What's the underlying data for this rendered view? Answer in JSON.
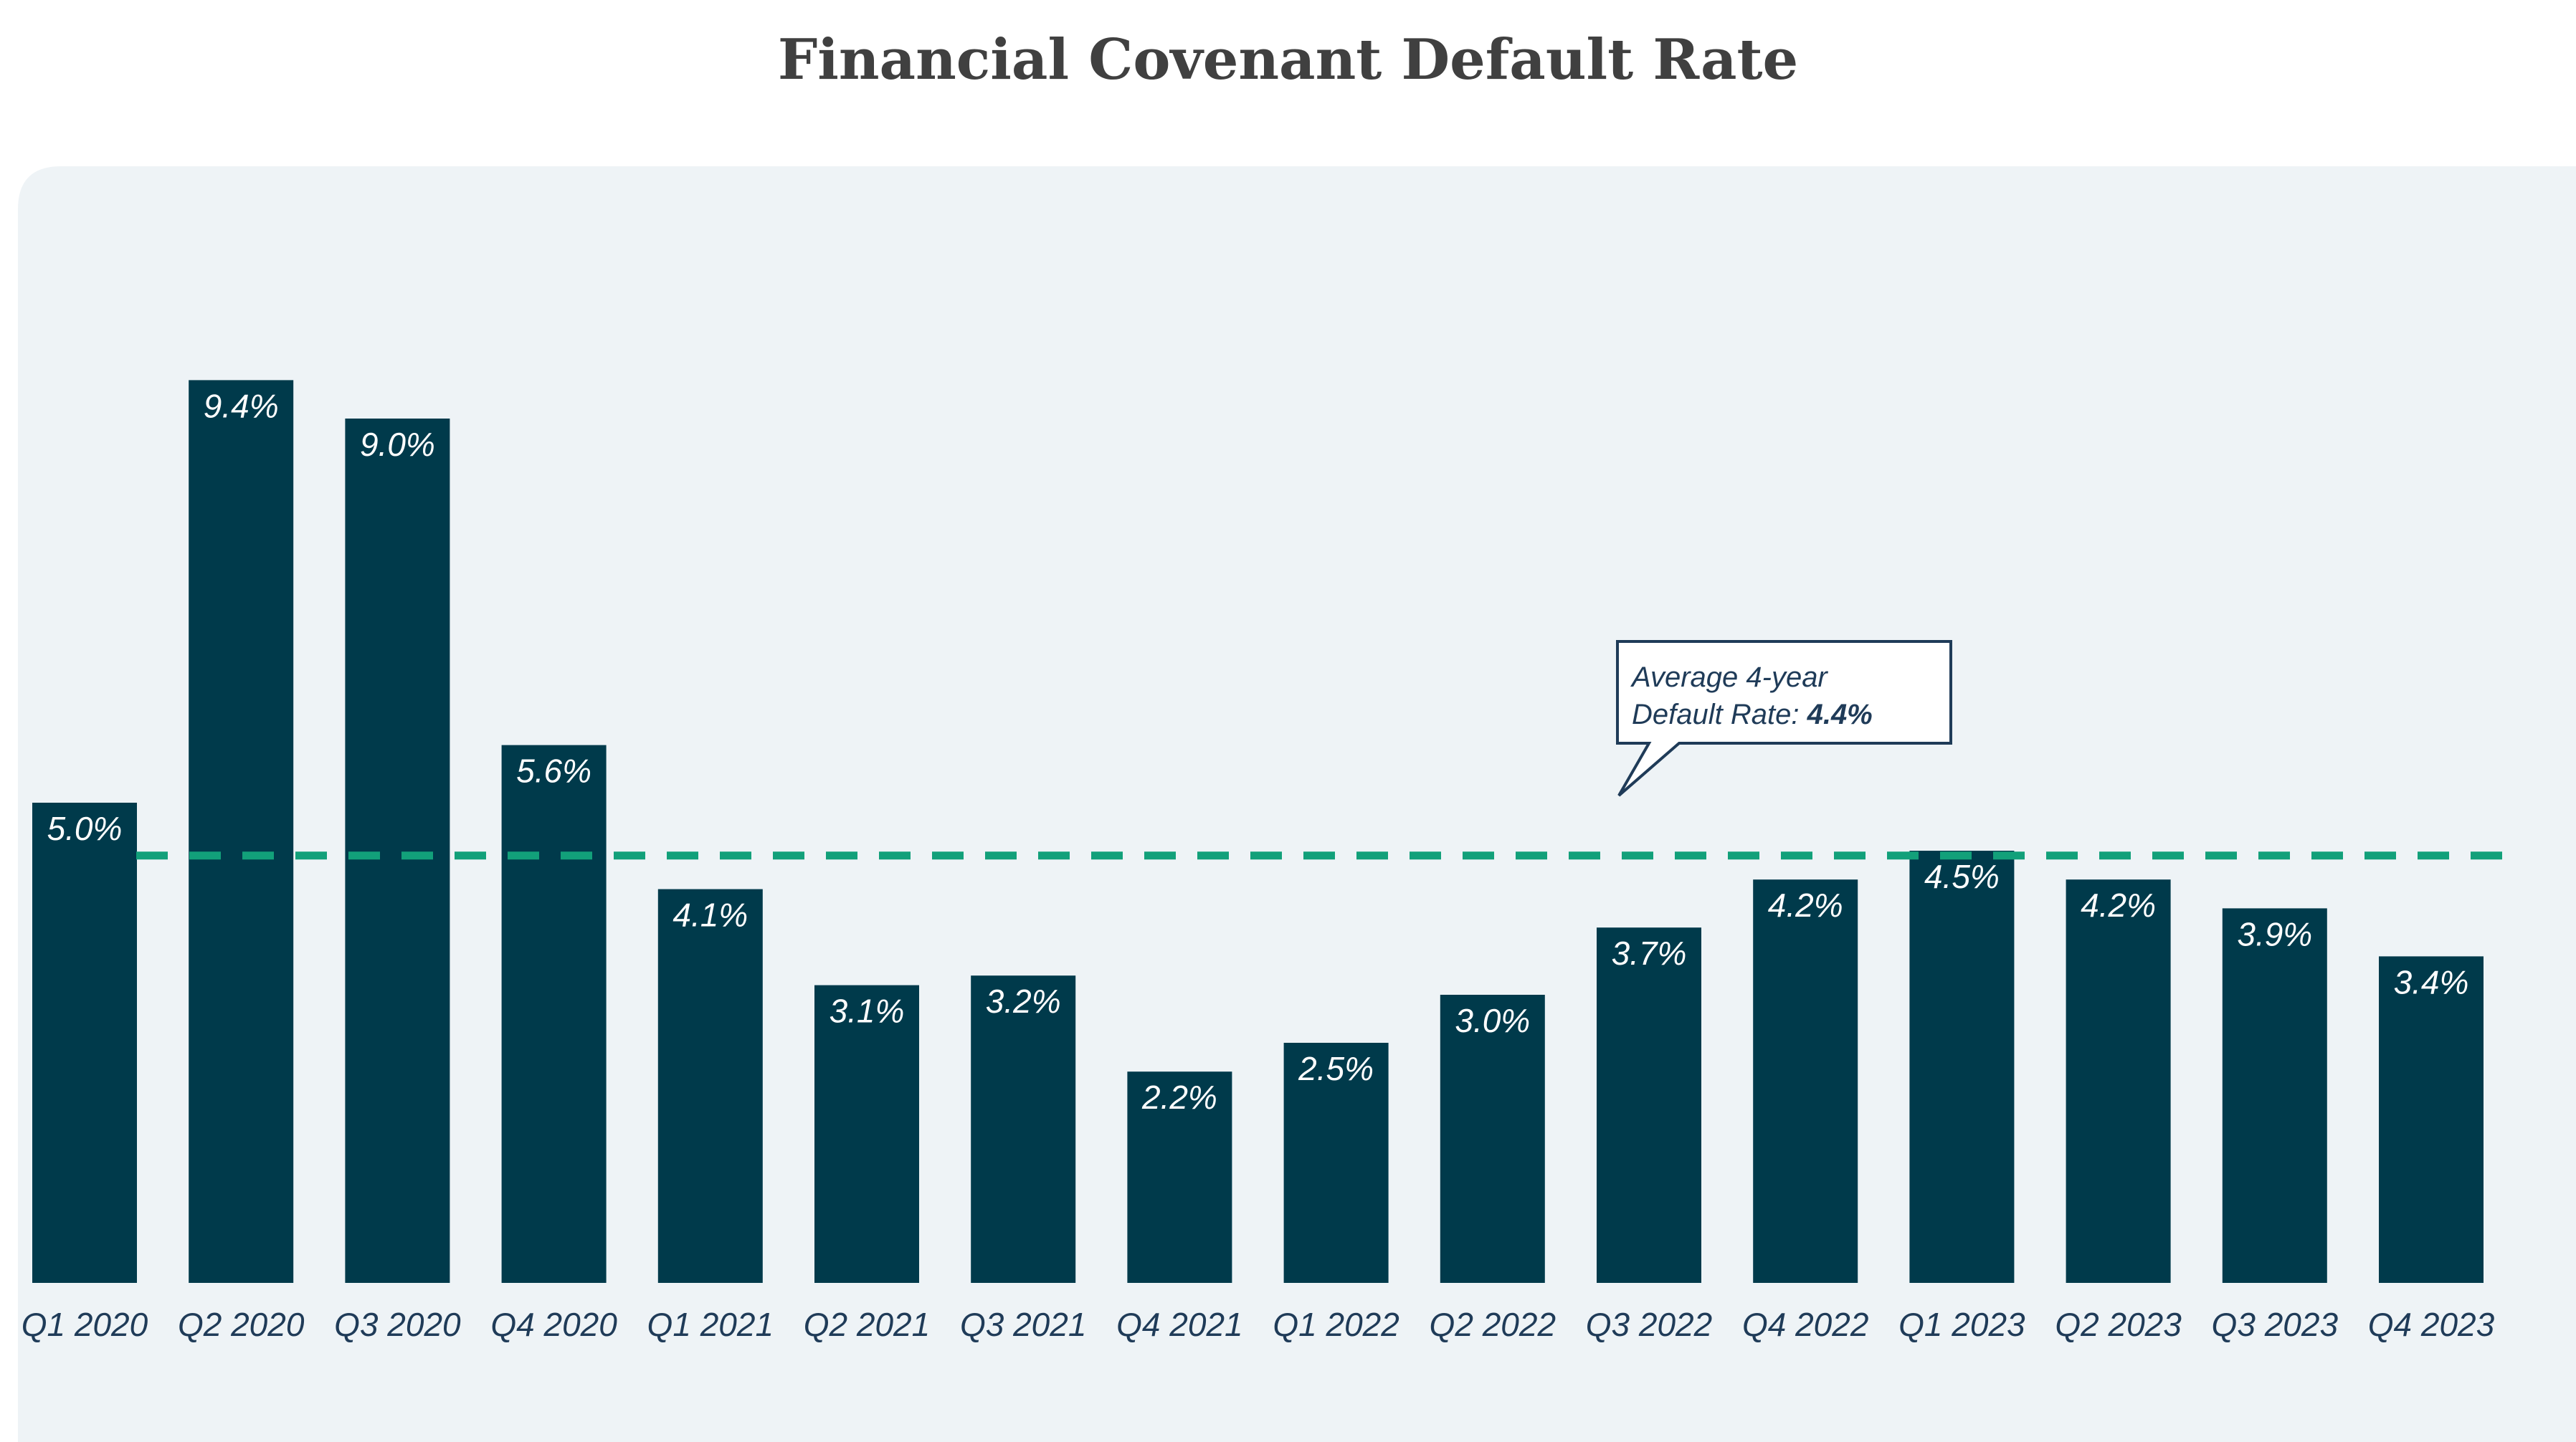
{
  "chart_data": {
    "type": "bar",
    "title": "Financial Covenant Default Rate",
    "categories": [
      "Q1 2020",
      "Q2 2020",
      "Q3 2020",
      "Q4 2020",
      "Q1 2021",
      "Q2 2021",
      "Q3 2021",
      "Q4 2021",
      "Q1 2022",
      "Q2 2022",
      "Q3 2022",
      "Q4 2022",
      "Q1 2023",
      "Q2 2023",
      "Q3 2023",
      "Q4 2023"
    ],
    "values": [
      5.0,
      9.4,
      9.0,
      5.6,
      4.1,
      3.1,
      3.2,
      2.2,
      2.5,
      3.0,
      3.7,
      4.2,
      4.5,
      4.2,
      3.9,
      3.4
    ],
    "data_labels": [
      "5.0%",
      "9.4%",
      "9.0%",
      "5.6%",
      "4.1%",
      "3.1%",
      "3.2%",
      "2.2%",
      "2.5%",
      "3.0%",
      "3.7%",
      "4.2%",
      "4.5%",
      "4.2%",
      "3.9%",
      "3.4%"
    ],
    "ylim": [
      0,
      10.5
    ],
    "grid": false,
    "legend": "none",
    "bar_color": "#003a4b",
    "panel_color": "#eef3f6",
    "reference_line": {
      "value": 4.45,
      "color": "#12a07a",
      "style": "dashed"
    },
    "annotation": {
      "line1": "Average 4-year",
      "line2_prefix": "Default Rate: ",
      "line2_value": "4.4%"
    }
  }
}
